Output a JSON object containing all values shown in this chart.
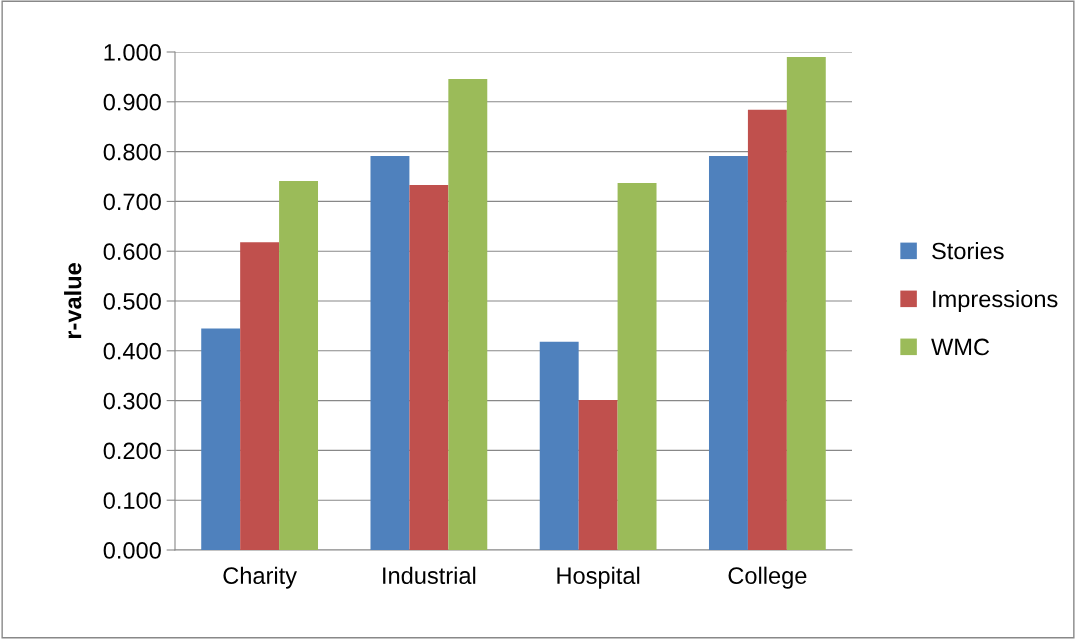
{
  "chart_data": {
    "type": "bar",
    "ylabel": "r-value",
    "categories": [
      "Charity",
      "Industrial",
      "Hospital",
      "College"
    ],
    "series": [
      {
        "name": "Stories",
        "color": "#4f81bd",
        "values": [
          0.445,
          0.791,
          0.418,
          0.791
        ]
      },
      {
        "name": "Impressions",
        "color": "#c0504d",
        "values": [
          0.618,
          0.733,
          0.301,
          0.884
        ]
      },
      {
        "name": "WMC",
        "color": "#9bbb59",
        "values": [
          0.741,
          0.946,
          0.737,
          0.99
        ]
      }
    ],
    "ylim": [
      0,
      1
    ],
    "yticks": [
      {
        "value": 0,
        "label": "0.000"
      },
      {
        "value": 0.1,
        "label": "0.100"
      },
      {
        "value": 0.2,
        "label": "0.200"
      },
      {
        "value": 0.3,
        "label": "0.300"
      },
      {
        "value": 0.4,
        "label": "0.400"
      },
      {
        "value": 0.5,
        "label": "0.500"
      },
      {
        "value": 0.6,
        "label": "0.600"
      },
      {
        "value": 0.7,
        "label": "0.700"
      },
      {
        "value": 0.8,
        "label": "0.800"
      },
      {
        "value": 0.9,
        "label": "0.900"
      },
      {
        "value": 1,
        "label": "1.000"
      }
    ],
    "grid": "y",
    "legend": "right"
  }
}
